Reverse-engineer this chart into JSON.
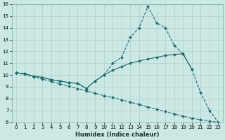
{
  "xlabel": "Humidex (Indice chaleur)",
  "bg_color": "#cce8e4",
  "grid_color": "#aacfcb",
  "line_color": "#1a6b6b",
  "x": [
    0,
    1,
    2,
    3,
    4,
    5,
    6,
    7,
    8,
    9,
    10,
    11,
    12,
    13,
    14,
    15,
    16,
    17,
    18,
    19,
    20,
    21,
    22,
    23
  ],
  "y_top": [
    10.2,
    10.1,
    9.9,
    9.8,
    9.6,
    9.5,
    9.35,
    9.3,
    8.85,
    9.5,
    10.0,
    11.0,
    11.5,
    13.2,
    14.0,
    15.8,
    14.4,
    14.0,
    12.5,
    11.8,
    10.5,
    8.5,
    7.0,
    6.0
  ],
  "y_mid": [
    10.2,
    10.1,
    9.9,
    9.8,
    9.6,
    9.5,
    9.35,
    9.3,
    8.85,
    9.5,
    10.0,
    10.4,
    10.7,
    11.0,
    11.2,
    11.35,
    11.5,
    11.65,
    11.75,
    11.8,
    10.5,
    null,
    null,
    null
  ],
  "y_bot": [
    10.2,
    10.05,
    9.85,
    9.65,
    9.45,
    9.25,
    9.05,
    8.85,
    8.65,
    8.45,
    8.25,
    8.1,
    7.9,
    7.7,
    7.5,
    7.3,
    7.1,
    6.9,
    6.7,
    6.5,
    6.35,
    6.2,
    6.1,
    6.0
  ],
  "ylim": [
    6,
    16
  ],
  "xlim_min": -0.5,
  "xlim_max": 23.5,
  "yticks": [
    6,
    7,
    8,
    9,
    10,
    11,
    12,
    13,
    14,
    15,
    16
  ],
  "xticks": [
    0,
    1,
    2,
    3,
    4,
    5,
    6,
    7,
    8,
    9,
    10,
    11,
    12,
    13,
    14,
    15,
    16,
    17,
    18,
    19,
    20,
    21,
    22,
    23
  ],
  "xlabel_fontsize": 6.0,
  "tick_fontsize": 5.0,
  "linewidth": 0.8,
  "markersize": 2.0
}
